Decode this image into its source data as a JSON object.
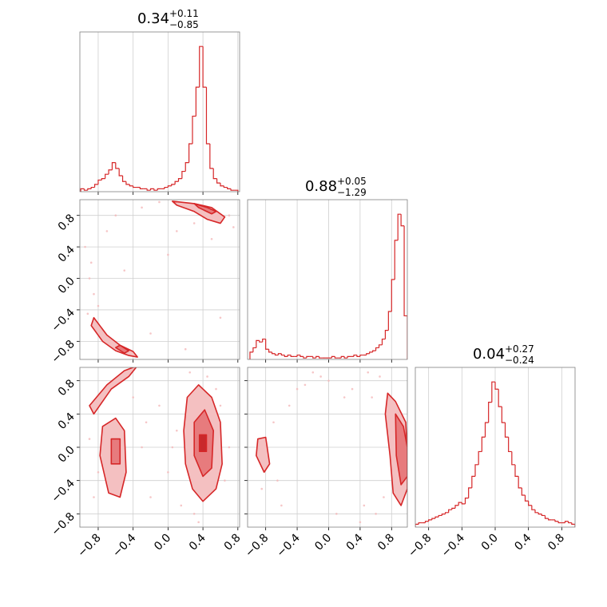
{
  "chart_data": {
    "type": "corner",
    "color": "#d62728",
    "grid": true,
    "params": [
      {
        "title": {
          "value": "0.34",
          "plus": "+0.11",
          "minus": "−0.85"
        },
        "lim": [
          -1.01,
          0.82
        ],
        "ticks": [
          {
            "value": -0.8,
            "label": "−0.8"
          },
          {
            "value": -0.4,
            "label": "−0.4"
          },
          {
            "value": 0,
            "label": "0.0"
          },
          0.4,
          0.8
        ]
      },
      {
        "title": {
          "value": "0.88",
          "plus": "+0.05",
          "minus": "−1.29"
        },
        "lim": [
          -1.03,
          1.0
        ],
        "ticks": [
          {
            "value": -0.8,
            "label": "−0.8"
          },
          {
            "value": -0.4,
            "label": "−0.4"
          },
          {
            "value": 0,
            "label": "0.0"
          },
          0.4,
          0.8
        ]
      },
      {
        "title": {
          "value": "0.04",
          "plus": "+0.27",
          "minus": "−0.24"
        },
        "lim": [
          -0.96,
          0.96
        ],
        "ticks": [
          {
            "value": -0.8,
            "label": "−0.8"
          },
          {
            "value": -0.4,
            "label": "−0.4"
          },
          {
            "value": 0,
            "label": "0.0"
          },
          0.4,
          0.8
        ]
      }
    ],
    "histograms": [
      {
        "ylim": [
          0,
          110
        ],
        "bins": [
          -1.0,
          -0.96,
          -0.92,
          -0.88,
          -0.84,
          -0.8,
          -0.76,
          -0.72,
          -0.68,
          -0.64,
          -0.6,
          -0.56,
          -0.52,
          -0.48,
          -0.44,
          -0.4,
          -0.36,
          -0.32,
          -0.28,
          -0.24,
          -0.2,
          -0.16,
          -0.12,
          -0.08,
          -0.04,
          0.0,
          0.04,
          0.08,
          0.12,
          0.16,
          0.2,
          0.24,
          0.28,
          0.32,
          0.36,
          0.4,
          0.44,
          0.48,
          0.52,
          0.56,
          0.6,
          0.64,
          0.68,
          0.72,
          0.76,
          0.8
        ],
        "values": [
          2,
          1,
          2,
          3,
          5,
          8,
          9,
          12,
          15,
          20,
          16,
          11,
          7,
          5,
          4,
          3,
          3,
          2,
          2,
          1,
          2,
          1,
          2,
          2,
          3,
          4,
          5,
          7,
          9,
          14,
          20,
          33,
          52,
          72,
          100,
          72,
          33,
          16,
          9,
          6,
          4,
          3,
          2,
          1,
          1
        ]
      },
      {
        "ylim": [
          0,
          110
        ],
        "bins": [
          -1.0,
          -0.96,
          -0.92,
          -0.88,
          -0.84,
          -0.8,
          -0.76,
          -0.72,
          -0.68,
          -0.64,
          -0.6,
          -0.56,
          -0.52,
          -0.48,
          -0.44,
          -0.4,
          -0.36,
          -0.32,
          -0.28,
          -0.24,
          -0.2,
          -0.16,
          -0.12,
          -0.08,
          -0.04,
          0.0,
          0.04,
          0.08,
          0.12,
          0.16,
          0.2,
          0.24,
          0.28,
          0.32,
          0.36,
          0.4,
          0.44,
          0.48,
          0.52,
          0.56,
          0.6,
          0.64,
          0.68,
          0.72,
          0.76,
          0.8,
          0.84,
          0.88,
          0.92,
          0.96,
          1.0
        ],
        "values": [
          5,
          8,
          13,
          12,
          14,
          7,
          5,
          4,
          3,
          4,
          3,
          2,
          3,
          2,
          2,
          3,
          2,
          1,
          2,
          2,
          1,
          2,
          1,
          1,
          1,
          1,
          2,
          1,
          1,
          2,
          1,
          2,
          2,
          3,
          2,
          3,
          3,
          4,
          5,
          6,
          8,
          10,
          14,
          20,
          33,
          55,
          82,
          100,
          92,
          30
        ]
      },
      {
        "ylim": [
          0,
          110
        ],
        "bins": [
          -0.96,
          -0.92,
          -0.88,
          -0.84,
          -0.8,
          -0.76,
          -0.72,
          -0.68,
          -0.64,
          -0.6,
          -0.56,
          -0.52,
          -0.48,
          -0.44,
          -0.4,
          -0.36,
          -0.32,
          -0.28,
          -0.24,
          -0.2,
          -0.16,
          -0.12,
          -0.08,
          -0.04,
          0.0,
          0.04,
          0.08,
          0.12,
          0.16,
          0.2,
          0.24,
          0.28,
          0.32,
          0.36,
          0.4,
          0.44,
          0.48,
          0.52,
          0.56,
          0.6,
          0.64,
          0.68,
          0.72,
          0.76,
          0.8,
          0.84,
          0.88,
          0.92,
          0.96
        ],
        "values": [
          2,
          3,
          3,
          4,
          5,
          6,
          7,
          8,
          9,
          10,
          12,
          13,
          15,
          17,
          16,
          20,
          27,
          35,
          43,
          52,
          62,
          72,
          86,
          100,
          95,
          83,
          72,
          62,
          52,
          43,
          35,
          27,
          22,
          18,
          15,
          12,
          10,
          9,
          8,
          6,
          5,
          5,
          4,
          3,
          3,
          4,
          3,
          2
        ]
      }
    ],
    "pairs": [
      {
        "scatter": {
          "x": [
            -0.95,
            -0.9,
            -0.85,
            -0.8,
            -0.7,
            -0.6,
            -0.3,
            -0.1,
            0.1,
            0.3,
            0.5,
            0.7,
            0.75,
            -0.92,
            -0.88,
            0.0,
            0.2,
            -0.5,
            0.6,
            -0.2
          ],
          "y": [
            0.4,
            0.0,
            -0.2,
            -0.35,
            0.6,
            0.8,
            0.9,
            0.97,
            0.6,
            0.7,
            0.5,
            0.8,
            0.65,
            -0.45,
            0.2,
            0.3,
            -0.9,
            0.1,
            -0.5,
            -0.7
          ]
        },
        "contours": [
          {
            "color": "#f4c0c1",
            "x": [
              0.05,
              0.3,
              0.5,
              0.65,
              0.6,
              0.45,
              0.3,
              0.1
            ],
            "y": [
              0.98,
              0.95,
              0.9,
              0.78,
              0.7,
              0.75,
              0.85,
              0.93
            ]
          },
          {
            "color": "#e77b7d",
            "x": [
              0.3,
              0.45,
              0.55,
              0.5,
              0.35
            ],
            "y": [
              0.95,
              0.9,
              0.85,
              0.82,
              0.9
            ]
          },
          {
            "color": "#f4c0c1",
            "x": [
              -0.88,
              -0.75,
              -0.6,
              -0.45,
              -0.35,
              -0.4,
              -0.55,
              -0.7,
              -0.85
            ],
            "y": [
              -0.6,
              -0.8,
              -0.92,
              -0.98,
              -1.0,
              -0.93,
              -0.85,
              -0.72,
              -0.5
            ]
          },
          {
            "color": "#e77b7d",
            "x": [
              -0.6,
              -0.5,
              -0.45,
              -0.55
            ],
            "y": [
              -0.88,
              -0.95,
              -0.92,
              -0.85
            ]
          }
        ]
      },
      {
        "scatter": {
          "x": [
            0.1,
            0.0,
            -0.1,
            -0.3,
            -0.8,
            -0.9,
            0.7,
            0.65,
            0.3,
            0.45,
            -0.2,
            0.15,
            -0.4,
            0.55,
            0.05,
            -0.85,
            0.35,
            -0.25,
            0.6,
            0.25
          ],
          "y": [
            0.2,
            -0.3,
            0.5,
            0.0,
            -0.3,
            0.1,
            0.0,
            -0.4,
            -0.8,
            0.85,
            -0.6,
            -0.7,
            0.6,
            0.7,
            0.0,
            -0.6,
            -0.9,
            0.3,
            0.5,
            0.9
          ]
        },
        "contours": [
          {
            "color": "#f4c0c1",
            "x": [
              0.22,
              0.35,
              0.5,
              0.6,
              0.62,
              0.55,
              0.4,
              0.28,
              0.2,
              0.18
            ],
            "y": [
              0.6,
              0.75,
              0.6,
              0.3,
              -0.2,
              -0.5,
              -0.65,
              -0.5,
              -0.2,
              0.2
            ]
          },
          {
            "color": "#e77b7d",
            "x": [
              0.3,
              0.42,
              0.52,
              0.5,
              0.4,
              0.3
            ],
            "y": [
              0.3,
              0.45,
              0.2,
              -0.25,
              -0.35,
              -0.1
            ]
          },
          {
            "color": "#c9282b",
            "x": [
              0.36,
              0.44,
              0.44,
              0.36
            ],
            "y": [
              0.15,
              0.15,
              -0.05,
              -0.05
            ]
          },
          {
            "color": "#f4c0c1",
            "x": [
              -0.75,
              -0.6,
              -0.5,
              -0.48,
              -0.55,
              -0.68,
              -0.78
            ],
            "y": [
              0.25,
              0.35,
              0.2,
              -0.3,
              -0.6,
              -0.55,
              -0.1
            ]
          },
          {
            "color": "#e77b7d",
            "x": [
              -0.65,
              -0.55,
              -0.55,
              -0.65
            ],
            "y": [
              0.1,
              0.1,
              -0.2,
              -0.2
            ]
          },
          {
            "color": "#f4c0c1",
            "x": [
              -0.9,
              -0.7,
              -0.5,
              -0.35,
              -0.45,
              -0.65,
              -0.85
            ],
            "y": [
              0.5,
              0.75,
              0.92,
              0.98,
              0.85,
              0.7,
              0.4
            ]
          }
        ]
      },
      {
        "scatter": {
          "x": [
            -0.2,
            -0.4,
            0.0,
            0.2,
            0.5,
            0.6,
            0.7,
            -0.6,
            -0.7,
            0.4,
            -0.3,
            -0.1,
            0.55,
            -0.85,
            0.65,
            0.3,
            -0.5,
            0.45,
            -0.65,
            0.1
          ],
          "y": [
            0.9,
            0.7,
            0.8,
            0.6,
            0.9,
            -0.8,
            -0.6,
            -0.7,
            0.3,
            -0.9,
            0.75,
            0.85,
            0.6,
            -0.5,
            0.85,
            0.7,
            0.5,
            -0.7,
            -0.4,
            -0.8
          ]
        },
        "contours": [
          {
            "color": "#f4c0c1",
            "x": [
              0.75,
              0.85,
              0.98,
              1.0,
              1.0,
              0.92,
              0.82,
              0.78,
              0.72
            ],
            "y": [
              0.65,
              0.55,
              0.3,
              -0.1,
              -0.5,
              -0.7,
              -0.55,
              -0.1,
              0.4
            ]
          },
          {
            "color": "#e77b7d",
            "x": [
              0.85,
              0.95,
              1.0,
              1.0,
              0.92,
              0.86
            ],
            "y": [
              0.4,
              0.25,
              0.0,
              -0.35,
              -0.45,
              -0.1
            ]
          },
          {
            "color": "#f4c0c1",
            "x": [
              -0.9,
              -0.8,
              -0.75,
              -0.82,
              -0.92
            ],
            "y": [
              0.1,
              0.12,
              -0.2,
              -0.3,
              -0.1
            ]
          }
        ]
      }
    ]
  }
}
